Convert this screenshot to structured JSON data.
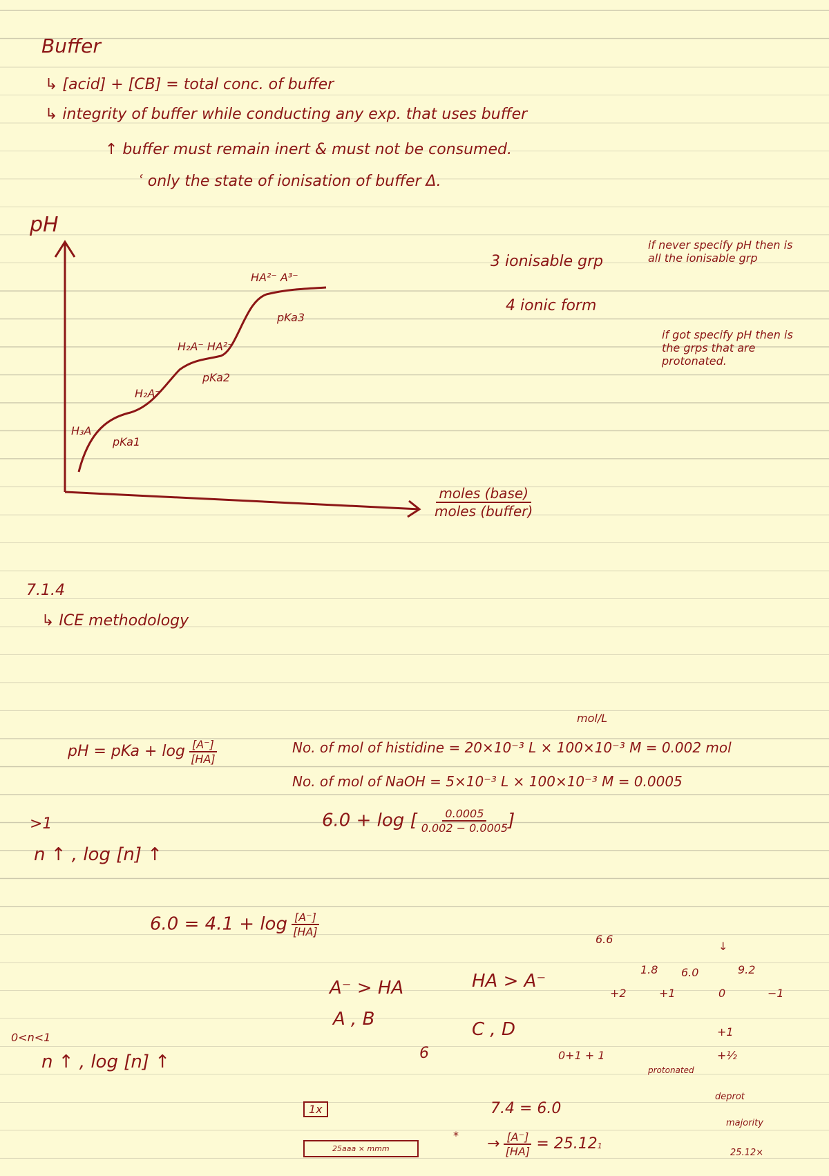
{
  "title": "Buffer",
  "notes": [
    "↳ [acid] + [CB] = total conc. of buffer",
    "↳ integrity of buffer while conducting any exp. that uses buffer",
    "↑ buffer must remain inert & must not be consumed.",
    "ʿ only the state of ionisation of buffer Δ."
  ],
  "graph": {
    "y_label": "pH",
    "x_label_numerator": "moles (base)",
    "x_label_denominator": "moles (buffer)",
    "labels": [
      "H₃A",
      "pKa1",
      "H₂A⁻",
      "H₂A⁻  HA²⁻",
      "pKa2",
      "HA²⁻   A³⁻",
      "pKa3"
    ]
  },
  "groups": [
    "3 ionisable grp",
    "4 ionic form"
  ],
  "side_notes": [
    "if never specify pH then is all the ionisable grp",
    "if got specify pH then is the grps that are protonated."
  ],
  "section": {
    "number": "7.1.4",
    "item": "↳ ICE methodology"
  },
  "henderson": {
    "lhs": "pH = pKa + log",
    "numerator": "[A⁻]",
    "denominator": "[HA]"
  },
  "unit": "mol/L",
  "calc": [
    "No. of mol of histidine = 20×10⁻³ L × 100×10⁻³ M = 0.002 mol",
    "No. of mol of NaOH = 5×10⁻³ L × 100×10⁻³ M = 0.0005"
  ],
  "log_expr": {
    "lhs": "6.0 + log",
    "numerator": "0.0005",
    "denominator": "0.002 − 0.0005"
  },
  "case1": {
    "condition": ">1",
    "statement": "n ↑ , log [n] ↑"
  },
  "equation": {
    "lhs": "6.0 = 4.1 + log",
    "numerator": "[A⁻]",
    "denominator": "[HA]"
  },
  "options": [
    "A⁻ > HA",
    "A , B",
    "HA > A⁻",
    "C , D",
    "6.6"
  ],
  "case2": {
    "condition": "0<n<1",
    "statement": "n ↑ , log [n] ↑",
    "value": "6",
    "sum": "0+1 + 1"
  },
  "charges": {
    "arrow": "↓",
    "pkas": [
      "1.8",
      "6.0",
      "9.2"
    ],
    "states": [
      "+2",
      "+1",
      "0",
      "−1"
    ],
    "extra": [
      "+1",
      "+½"
    ],
    "protonated": "protonated",
    "deprot": "deprot",
    "majority": "majority",
    "result": "25.12×"
  },
  "bottom": {
    "box1": "1x",
    "box2": "25aaa × mmm",
    "star": "*",
    "eq": "7.4 = 6.0",
    "ratio": "→",
    "numerator": "[A⁻]",
    "denominator": "[HA]",
    "value": "= 25.12",
    "sub": "1"
  }
}
